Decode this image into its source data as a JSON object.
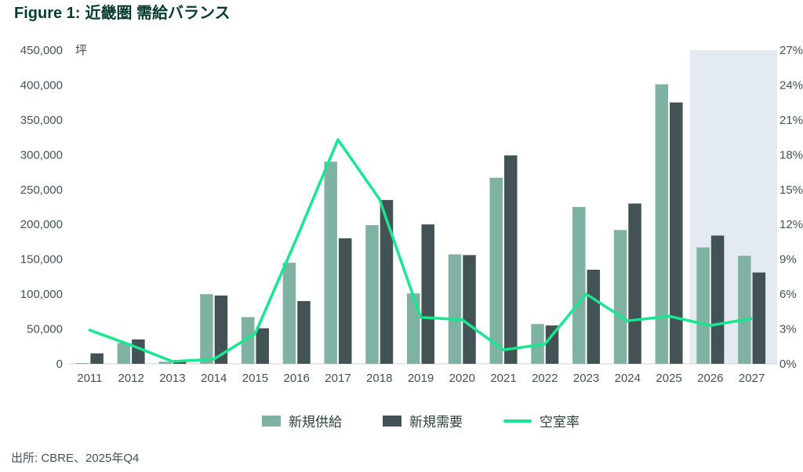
{
  "title": {
    "prefix": "Figure 1:",
    "text": "近畿圏 需給バランス"
  },
  "source": "出所: CBRE、2025年Q4",
  "legend": {
    "supply": "新規供給",
    "demand": "新規需要",
    "vacancy": "空室率"
  },
  "axes": {
    "left_unit": "坪",
    "left_ticks": [
      "0",
      "50,000",
      "100,000",
      "150,000",
      "200,000",
      "250,000",
      "300,000",
      "350,000",
      "400,000",
      "450,000"
    ],
    "right_ticks": [
      "0%",
      "3%",
      "6%",
      "9%",
      "12%",
      "15%",
      "18%",
      "21%",
      "24%",
      "27%"
    ]
  },
  "colors": {
    "supply_bar": "#80B2A4",
    "demand_bar": "#435254",
    "vacancy_line": "#17E88F",
    "forecast_fill": "#E4EAF1",
    "axis_text": "#435254",
    "baseline": "#CCD2D2"
  },
  "chart_data": {
    "type": "bar+line",
    "title": "Figure 1: 近畿圏 需給バランス",
    "categories": [
      "2011",
      "2012",
      "2013",
      "2014",
      "2015",
      "2016",
      "2017",
      "2018",
      "2019",
      "2020",
      "2021",
      "2022",
      "2023",
      "2024",
      "2025",
      "2026",
      "2027"
    ],
    "series": [
      {
        "name": "新規供給",
        "type": "bar",
        "axis": "left",
        "color": "#80B2A4",
        "values": [
          1000,
          30000,
          3000,
          100000,
          67000,
          145000,
          290000,
          199000,
          101000,
          157000,
          267000,
          57000,
          225000,
          192000,
          401000,
          167000,
          155000
        ]
      },
      {
        "name": "新規需要",
        "type": "bar",
        "axis": "left",
        "color": "#435254",
        "values": [
          15000,
          35000,
          3000,
          98000,
          51000,
          90000,
          180000,
          235000,
          200000,
          156000,
          299000,
          55000,
          135000,
          230000,
          375000,
          184000,
          131000
        ]
      },
      {
        "name": "空室率",
        "type": "line",
        "axis": "right",
        "unit": "%",
        "color": "#17E88F",
        "values": [
          2.9,
          1.6,
          0.2,
          0.4,
          2.6,
          10.8,
          19.3,
          14.2,
          4.0,
          3.8,
          1.2,
          1.7,
          6.0,
          3.7,
          4.1,
          3.3,
          3.9
        ]
      }
    ],
    "left_axis": {
      "label": "坪",
      "min": 0,
      "max": 450000,
      "tick_step": 50000
    },
    "right_axis": {
      "label": "%",
      "min": 0,
      "max": 27,
      "tick_step": 3
    },
    "forecast": {
      "categories": [
        "2026",
        "2027"
      ],
      "fill": "#E4EAF1"
    },
    "grid": false,
    "legend_position": "bottom"
  }
}
